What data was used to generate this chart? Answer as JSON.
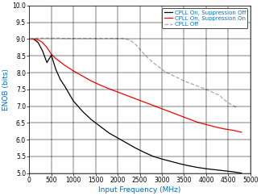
{
  "title": "",
  "xlabel": "Input Frequency (MHz)",
  "ylabel": "ENOB (bits)",
  "xlim": [
    0,
    5000
  ],
  "ylim": [
    5,
    10
  ],
  "yticks": [
    5,
    5.5,
    6,
    6.5,
    7,
    7.5,
    8,
    8.5,
    9,
    9.5,
    10
  ],
  "xticks": [
    0,
    500,
    1000,
    1500,
    2000,
    2500,
    3000,
    3500,
    4000,
    4500,
    5000
  ],
  "series": [
    {
      "label": "CPLL On, Suppression Off",
      "color": "#000000",
      "linestyle": "-",
      "x": [
        10,
        50,
        100,
        200,
        300,
        400,
        500,
        600,
        700,
        800,
        1000,
        1200,
        1400,
        1600,
        1800,
        2000,
        2200,
        2400,
        2600,
        2800,
        3000,
        3200,
        3400,
        3600,
        3800,
        4000,
        4200,
        4400,
        4600,
        4800
      ],
      "y": [
        9.0,
        9.0,
        9.0,
        8.9,
        8.65,
        8.3,
        8.52,
        8.1,
        7.8,
        7.6,
        7.15,
        6.85,
        6.6,
        6.4,
        6.2,
        6.05,
        5.9,
        5.75,
        5.62,
        5.5,
        5.42,
        5.35,
        5.28,
        5.22,
        5.17,
        5.13,
        5.1,
        5.07,
        5.04,
        5.0
      ]
    },
    {
      "label": "CPLL On, Suppression On",
      "color": "#ff0000",
      "linestyle": "-",
      "x": [
        10,
        50,
        100,
        200,
        300,
        400,
        500,
        600,
        700,
        800,
        1000,
        1200,
        1400,
        1600,
        1800,
        2000,
        2200,
        2400,
        2600,
        2800,
        3000,
        3200,
        3400,
        3600,
        3800,
        4000,
        4200,
        4400,
        4600,
        4800
      ],
      "y": [
        9.0,
        9.0,
        9.0,
        8.98,
        8.9,
        8.75,
        8.55,
        8.42,
        8.32,
        8.22,
        8.05,
        7.9,
        7.75,
        7.63,
        7.52,
        7.42,
        7.32,
        7.22,
        7.12,
        7.02,
        6.92,
        6.82,
        6.72,
        6.62,
        6.52,
        6.45,
        6.38,
        6.32,
        6.28,
        6.22
      ]
    },
    {
      "label": "CPLL Off",
      "color": "#aaaaaa",
      "linestyle": "--",
      "x": [
        10,
        100,
        200,
        300,
        400,
        500,
        600,
        700,
        800,
        900,
        1000,
        1200,
        1400,
        1600,
        1800,
        2000,
        2100,
        2200,
        2250,
        2300,
        2400,
        2500,
        2600,
        2700,
        2800,
        2900,
        3000,
        3100,
        3200,
        3300,
        3400,
        3500,
        3600,
        3700,
        3800,
        3900,
        4000,
        4100,
        4200,
        4300,
        4400,
        4500,
        4600,
        4700
      ],
      "y": [
        9.0,
        9.02,
        9.03,
        9.03,
        9.03,
        9.03,
        9.03,
        9.03,
        9.02,
        9.02,
        9.02,
        9.02,
        9.02,
        9.02,
        9.02,
        9.02,
        9.02,
        9.0,
        8.98,
        8.95,
        8.85,
        8.7,
        8.55,
        8.42,
        8.3,
        8.2,
        8.1,
        8.0,
        7.95,
        7.88,
        7.82,
        7.75,
        7.7,
        7.65,
        7.6,
        7.55,
        7.5,
        7.44,
        7.38,
        7.32,
        7.2,
        7.1,
        7.02,
        6.95
      ]
    }
  ],
  "legend_loc": "upper right",
  "label_color": "#0070c0",
  "grid_color": "#000000",
  "background_color": "#ffffff",
  "figsize": [
    3.24,
    2.43
  ],
  "dpi": 100
}
